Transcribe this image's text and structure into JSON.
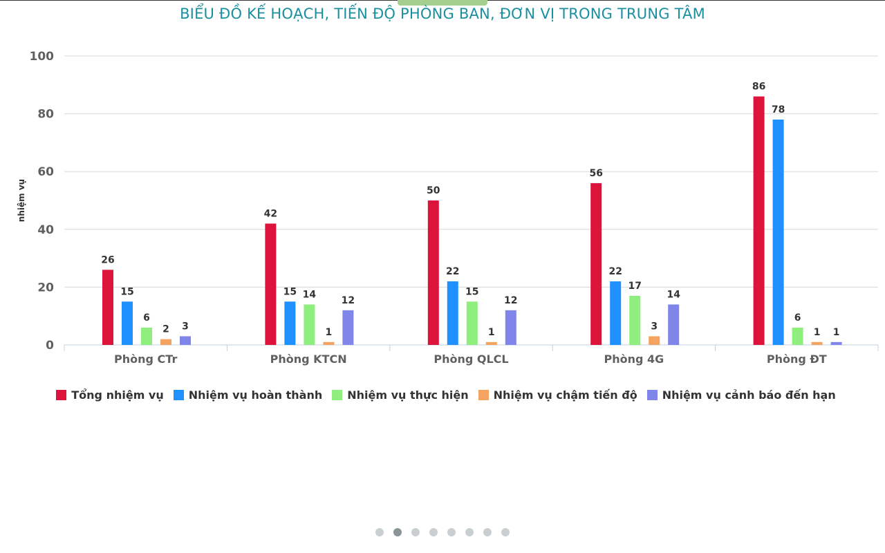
{
  "chart_data": {
    "type": "bar",
    "title": "BIỂU ĐỒ KẾ HOẠCH, TIẾN ĐỘ PHÒNG BAN, ĐƠN VỊ TRONG TRUNG TÂM",
    "ylabel": "nhiệm vụ",
    "ylim": [
      0,
      100
    ],
    "yticks": [
      "0",
      "20",
      "40",
      "60",
      "80",
      "100"
    ],
    "categories": [
      "Phòng CTr",
      "Phòng KTCN",
      "Phòng QLCL",
      "Phòng 4G",
      "Phòng ĐT"
    ],
    "series": [
      {
        "name": "Tổng nhiệm vụ",
        "color": "#dc143c",
        "values": [
          26,
          42,
          50,
          56,
          86
        ]
      },
      {
        "name": "Nhiệm vụ hoàn thành",
        "color": "#1e90ff",
        "values": [
          15,
          15,
          22,
          22,
          78
        ]
      },
      {
        "name": "Nhiệm vụ thực hiện",
        "color": "#90ee7e",
        "values": [
          6,
          14,
          15,
          17,
          6
        ]
      },
      {
        "name": "Nhiệm vụ chậm tiến độ",
        "color": "#f4a460",
        "values": [
          2,
          1,
          1,
          3,
          1
        ]
      },
      {
        "name": "Nhiệm vụ cảnh báo đến hạn",
        "color": "#8085e9",
        "values": [
          3,
          12,
          12,
          14,
          1
        ]
      }
    ],
    "grid": true,
    "legend_position": "bottom"
  },
  "pagination": {
    "count": 8,
    "active": 1
  }
}
